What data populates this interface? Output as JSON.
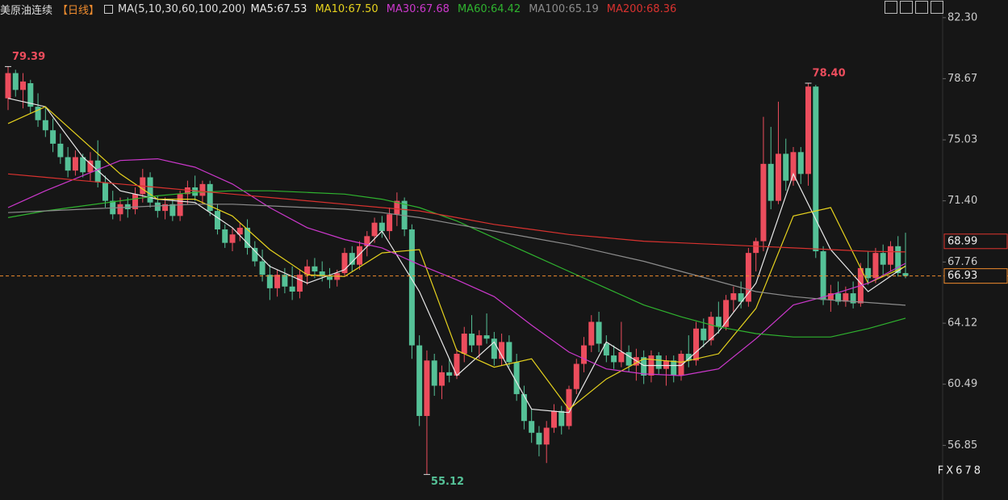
{
  "chart_data": {
    "type": "candlestick",
    "title": "美原油连续",
    "period": "【日线】",
    "indicator": "MA(5,10,30,60,100,200)",
    "up_color": "#ec4d5d",
    "down_color": "#55c197",
    "ylim": [
      53.6,
      83.35
    ],
    "yticks": [
      {
        "value": 82.3,
        "label": "82.30"
      },
      78.67,
      75.03,
      {
        "value": 71.4,
        "label": "71.40"
      },
      67.76,
      64.12,
      60.49,
      56.85
    ],
    "ohlc": [
      [
        77.5,
        79.39,
        76.8,
        79.0
      ],
      [
        79.0,
        79.2,
        77.6,
        78.0
      ],
      [
        78.0,
        79.0,
        76.9,
        78.5
      ],
      [
        78.4,
        78.6,
        76.6,
        77.0
      ],
      [
        77.0,
        77.8,
        75.8,
        76.2
      ],
      [
        76.2,
        77.0,
        75.2,
        75.6
      ],
      [
        75.6,
        76.3,
        74.3,
        74.8
      ],
      [
        74.8,
        75.4,
        73.6,
        74.0
      ],
      [
        74.0,
        74.6,
        72.8,
        73.2
      ],
      [
        73.2,
        74.4,
        72.9,
        74.0
      ],
      [
        74.0,
        74.2,
        72.8,
        73.1
      ],
      [
        73.1,
        74.3,
        72.6,
        73.8
      ],
      [
        73.8,
        75.0,
        72.2,
        72.5
      ],
      [
        72.5,
        72.9,
        71.0,
        71.4
      ],
      [
        71.4,
        72.0,
        70.3,
        70.6
      ],
      [
        70.6,
        71.6,
        70.2,
        71.2
      ],
      [
        71.2,
        71.6,
        70.4,
        70.9
      ],
      [
        70.9,
        72.2,
        70.6,
        71.8
      ],
      [
        71.8,
        73.3,
        71.3,
        72.8
      ],
      [
        72.8,
        73.1,
        71.0,
        71.3
      ],
      [
        71.3,
        71.7,
        70.4,
        70.8
      ],
      [
        70.8,
        71.6,
        70.3,
        71.2
      ],
      [
        71.2,
        71.5,
        70.2,
        70.5
      ],
      [
        70.5,
        72.0,
        70.2,
        71.8
      ],
      [
        71.8,
        72.6,
        71.2,
        72.2
      ],
      [
        72.2,
        72.9,
        71.4,
        71.7
      ],
      [
        71.7,
        72.6,
        71.2,
        72.4
      ],
      [
        72.4,
        72.6,
        70.5,
        70.8
      ],
      [
        70.8,
        71.2,
        69.4,
        69.7
      ],
      [
        69.7,
        70.0,
        68.6,
        68.9
      ],
      [
        68.9,
        69.8,
        68.4,
        69.4
      ],
      [
        69.4,
        70.1,
        69.0,
        69.8
      ],
      [
        69.8,
        70.3,
        68.2,
        68.6
      ],
      [
        68.6,
        69.0,
        67.5,
        67.8
      ],
      [
        67.8,
        68.5,
        66.6,
        67.0
      ],
      [
        67.0,
        67.6,
        65.5,
        66.2
      ],
      [
        66.2,
        67.3,
        65.7,
        67.0
      ],
      [
        67.0,
        67.4,
        65.9,
        66.3
      ],
      [
        66.3,
        67.5,
        65.5,
        66.0
      ],
      [
        66.0,
        67.3,
        65.6,
        67.0
      ],
      [
        67.0,
        67.9,
        66.4,
        67.5
      ],
      [
        67.5,
        68.0,
        66.8,
        67.2
      ],
      [
        67.2,
        67.8,
        66.6,
        66.9
      ],
      [
        66.9,
        67.4,
        66.2,
        66.7
      ],
      [
        66.7,
        67.3,
        66.3,
        67.1
      ],
      [
        67.1,
        68.6,
        66.9,
        68.3
      ],
      [
        68.3,
        68.7,
        67.2,
        67.6
      ],
      [
        67.6,
        69.0,
        67.3,
        68.7
      ],
      [
        68.7,
        69.6,
        68.1,
        69.3
      ],
      [
        69.3,
        70.4,
        68.9,
        70.1
      ],
      [
        70.1,
        70.5,
        69.2,
        69.6
      ],
      [
        69.6,
        71.0,
        69.1,
        70.6
      ],
      [
        70.6,
        71.9,
        69.9,
        71.4
      ],
      [
        71.4,
        71.6,
        69.3,
        69.7
      ],
      [
        69.7,
        70.0,
        62.0,
        62.8
      ],
      [
        62.8,
        63.4,
        58.0,
        58.6
      ],
      [
        58.6,
        62.5,
        55.12,
        61.9
      ],
      [
        61.9,
        62.3,
        59.8,
        60.4
      ],
      [
        60.4,
        61.6,
        59.6,
        61.2
      ],
      [
        61.2,
        62.0,
        60.6,
        61.0
      ],
      [
        61.0,
        62.6,
        60.8,
        62.3
      ],
      [
        62.3,
        63.9,
        61.8,
        63.5
      ],
      [
        63.5,
        64.6,
        62.4,
        62.8
      ],
      [
        62.8,
        63.7,
        62.0,
        63.4
      ],
      [
        63.4,
        64.7,
        62.9,
        63.2
      ],
      [
        63.2,
        63.6,
        61.6,
        62.0
      ],
      [
        62.0,
        63.5,
        61.6,
        63.0
      ],
      [
        63.0,
        63.4,
        61.5,
        61.8
      ],
      [
        61.8,
        62.3,
        59.5,
        59.9
      ],
      [
        59.9,
        60.4,
        57.8,
        58.3
      ],
      [
        58.3,
        59.0,
        57.0,
        57.6
      ],
      [
        57.6,
        58.0,
        56.2,
        56.9
      ],
      [
        56.9,
        58.3,
        55.8,
        57.9
      ],
      [
        57.9,
        59.3,
        57.6,
        58.9
      ],
      [
        58.9,
        59.2,
        57.5,
        58.0
      ],
      [
        58.0,
        60.4,
        57.8,
        60.2
      ],
      [
        60.2,
        62.0,
        59.9,
        61.7
      ],
      [
        61.7,
        63.3,
        61.2,
        62.8
      ],
      [
        62.8,
        64.6,
        62.4,
        64.2
      ],
      [
        64.2,
        64.8,
        62.4,
        62.9
      ],
      [
        62.9,
        63.4,
        61.8,
        62.2
      ],
      [
        62.2,
        62.8,
        61.4,
        61.8
      ],
      [
        61.8,
        64.2,
        61.5,
        62.4
      ],
      [
        62.4,
        62.8,
        61.2,
        61.6
      ],
      [
        61.6,
        62.6,
        60.7,
        62.1
      ],
      [
        62.1,
        62.5,
        60.5,
        61.0
      ],
      [
        61.0,
        62.5,
        60.6,
        62.2
      ],
      [
        62.2,
        62.4,
        61.1,
        61.4
      ],
      [
        61.4,
        62.2,
        60.4,
        61.9
      ],
      [
        61.9,
        62.2,
        60.6,
        61.0
      ],
      [
        61.0,
        62.5,
        60.7,
        62.3
      ],
      [
        62.3,
        63.4,
        61.5,
        61.9
      ],
      [
        61.9,
        64.2,
        61.6,
        63.8
      ],
      [
        63.8,
        64.4,
        62.7,
        63.1
      ],
      [
        63.1,
        64.8,
        62.8,
        64.5
      ],
      [
        64.5,
        65.4,
        63.5,
        63.9
      ],
      [
        63.9,
        65.8,
        63.7,
        65.5
      ],
      [
        65.5,
        66.3,
        64.8,
        65.9
      ],
      [
        65.9,
        66.6,
        65.0,
        65.4
      ],
      [
        65.4,
        68.6,
        65.1,
        68.3
      ],
      [
        68.3,
        69.2,
        67.2,
        69.0
      ],
      [
        69.0,
        76.4,
        68.4,
        73.6
      ],
      [
        73.6,
        75.8,
        70.9,
        71.4
      ],
      [
        71.4,
        77.3,
        71.2,
        74.2
      ],
      [
        74.2,
        75.1,
        72.0,
        72.6
      ],
      [
        72.6,
        74.6,
        72.3,
        74.3
      ],
      [
        74.3,
        74.6,
        72.4,
        73.0
      ],
      [
        73.0,
        78.4,
        72.3,
        78.2
      ],
      [
        78.2,
        78.3,
        68.0,
        68.4
      ],
      [
        68.4,
        68.7,
        65.2,
        65.5
      ],
      [
        65.5,
        66.4,
        64.8,
        65.9
      ],
      [
        65.9,
        66.6,
        65.2,
        65.4
      ],
      [
        65.4,
        66.3,
        65.1,
        65.9
      ],
      [
        65.9,
        66.6,
        65.0,
        65.3
      ],
      [
        65.3,
        67.7,
        65.1,
        67.4
      ],
      [
        67.4,
        68.4,
        66.4,
        66.8
      ],
      [
        66.8,
        68.6,
        66.5,
        68.3
      ],
      [
        68.3,
        68.8,
        67.0,
        67.6
      ],
      [
        67.6,
        69.0,
        67.2,
        68.7
      ],
      [
        68.7,
        69.3,
        66.9,
        67.1
      ],
      [
        67.1,
        69.5,
        66.8,
        66.93
      ]
    ],
    "ma_x": [
      0,
      5,
      10,
      15,
      20,
      25,
      30,
      35,
      40,
      45,
      50,
      55,
      60,
      65,
      70,
      75,
      80,
      85,
      90,
      95,
      100,
      105,
      110,
      115,
      120
    ],
    "series": [
      {
        "name": "MA5:67.53",
        "color": "#e8e8e8",
        "values": [
          77.5,
          77.0,
          74.0,
          72.0,
          71.5,
          71.3,
          69.8,
          67.5,
          66.5,
          67.3,
          69.6,
          66.0,
          61.0,
          63.0,
          59.0,
          58.8,
          63.0,
          61.6,
          61.6,
          63.6,
          66.5,
          73.0,
          68.5,
          66.0,
          67.53
        ]
      },
      {
        "name": "MA10:67.50",
        "color": "#e6d21e",
        "values": [
          76.0,
          77.0,
          75.0,
          73.0,
          71.5,
          71.5,
          70.5,
          68.5,
          67.0,
          66.9,
          68.3,
          68.5,
          62.5,
          61.5,
          62.0,
          59.0,
          60.8,
          62.0,
          61.8,
          62.3,
          65.0,
          70.5,
          71.0,
          66.5,
          67.5
        ]
      },
      {
        "name": "MA30:67.68",
        "color": "#cc38cc",
        "values": [
          71.0,
          72.0,
          72.9,
          73.8,
          73.9,
          73.4,
          72.4,
          71.0,
          69.8,
          69.1,
          68.6,
          67.6,
          66.7,
          65.7,
          64.0,
          62.4,
          61.4,
          61.1,
          61.0,
          61.4,
          63.2,
          65.2,
          65.8,
          66.5,
          67.68
        ]
      },
      {
        "name": "MA60:64.42",
        "color": "#2fb32f",
        "values": [
          70.4,
          70.8,
          71.1,
          71.4,
          71.7,
          71.9,
          72.0,
          72.0,
          71.9,
          71.8,
          71.5,
          71.0,
          70.2,
          69.2,
          68.2,
          67.2,
          66.2,
          65.2,
          64.5,
          63.9,
          63.5,
          63.3,
          63.3,
          63.8,
          64.42
        ]
      },
      {
        "name": "MA100:65.19",
        "color": "#8c8c8c",
        "values": [
          70.7,
          70.8,
          70.9,
          71.0,
          71.1,
          71.2,
          71.2,
          71.1,
          71.0,
          70.9,
          70.7,
          70.4,
          70.0,
          69.6,
          69.2,
          68.8,
          68.3,
          67.8,
          67.2,
          66.6,
          66.0,
          65.7,
          65.5,
          65.35,
          65.19
        ]
      },
      {
        "name": "MA200:68.36",
        "color": "#d9322f",
        "values": [
          73.0,
          72.8,
          72.6,
          72.4,
          72.2,
          72.0,
          71.8,
          71.6,
          71.4,
          71.2,
          71.0,
          70.8,
          70.4,
          70.0,
          69.7,
          69.4,
          69.2,
          69.0,
          68.9,
          68.8,
          68.7,
          68.6,
          68.5,
          68.4,
          68.36
        ]
      }
    ],
    "price_markers": [
      {
        "value": 68.99,
        "color": "#e0352f"
      },
      {
        "value": 66.93,
        "color": "#f08c2e"
      }
    ],
    "annotations": [
      {
        "text": "79.39",
        "color": "#ec4d5d"
      },
      {
        "text": "78.40",
        "color": "#ec4d5d"
      },
      {
        "text": "55.12",
        "color": "#55c197"
      }
    ],
    "watermark": "FX678"
  }
}
